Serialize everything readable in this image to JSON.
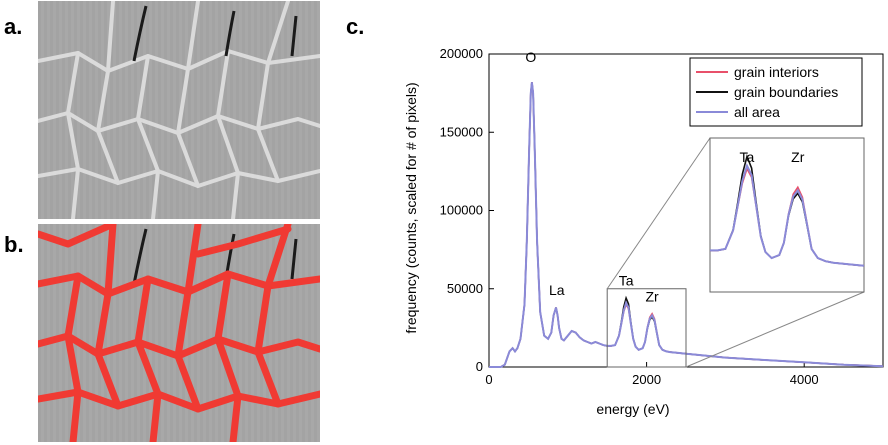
{
  "panel_labels": {
    "a": "a.",
    "b": "b.",
    "c": "c."
  },
  "colors": {
    "grain_interiors": "#e8506a",
    "grain_boundaries": "#111111",
    "all_area": "#8a8ad8",
    "boundary_overlay": "#f03a33",
    "micro_bg": "#a9a9a9"
  },
  "micrographs": [
    {
      "panel": "a",
      "overlay": "none"
    },
    {
      "panel": "b",
      "overlay": "grain boundaries (red)"
    }
  ],
  "chart_data": {
    "type": "line",
    "xlabel": "energy (eV)",
    "ylabel": "frequency (counts, scaled for # of pixels)",
    "xlim": [
      0,
      5000
    ],
    "ylim": [
      0,
      200000
    ],
    "xticks": [
      0,
      2000,
      4000
    ],
    "yticks": [
      0,
      50000,
      100000,
      150000,
      200000
    ],
    "legend_position": "top-right",
    "series": [
      {
        "name": "grain interiors",
        "peaks": {
          "Ta": 40000,
          "Zr": 34000
        }
      },
      {
        "name": "grain boundaries",
        "peaks": {
          "Ta": 44000,
          "Zr": 32000
        }
      },
      {
        "name": "all area",
        "peaks": {
          "Ta": 41000,
          "Zr": 33000
        }
      }
    ],
    "x": [
      0,
      150,
      200,
      260,
      300,
      330,
      360,
      400,
      450,
      480,
      510,
      530,
      545,
      560,
      580,
      610,
      650,
      700,
      750,
      790,
      820,
      850,
      870,
      890,
      920,
      950,
      1000,
      1050,
      1100,
      1150,
      1200,
      1250,
      1300,
      1350,
      1400,
      1450,
      1500,
      1550,
      1600,
      1650,
      1680,
      1710,
      1740,
      1770,
      1800,
      1830,
      1860,
      1900,
      1950,
      1980,
      2010,
      2040,
      2070,
      2100,
      2130,
      2160,
      2200,
      2250,
      2300,
      2400,
      2500,
      2700,
      3000,
      3500,
      4000,
      4500,
      5000
    ],
    "base": [
      0,
      0,
      1500,
      10000,
      12000,
      10000,
      12000,
      18000,
      40000,
      80000,
      140000,
      175000,
      182000,
      175000,
      140000,
      80000,
      35000,
      20000,
      18000,
      22000,
      33000,
      38000,
      33000,
      25000,
      18000,
      17000,
      20000,
      23000,
      22000,
      19000,
      17000,
      16000,
      15000,
      16000,
      15000,
      14000,
      13500,
      13500,
      14000,
      20000,
      28000,
      36000,
      41000,
      38000,
      28000,
      18000,
      13000,
      11000,
      12000,
      16000,
      25000,
      31000,
      33000,
      30000,
      22000,
      14000,
      11000,
      10000,
      9500,
      9000,
      8500,
      7500,
      6000,
      4500,
      3000,
      1500,
      500
    ],
    "annotations": [
      {
        "text": "O",
        "x": 530,
        "y": 195000
      },
      {
        "text": "La",
        "x": 860,
        "y": 46000
      },
      {
        "text": "Ta",
        "x": 1740,
        "y": 52000
      },
      {
        "text": "Zr",
        "x": 2070,
        "y": 42000
      }
    ],
    "inset": {
      "xlim": [
        1500,
        2500
      ],
      "ylim": [
        0,
        50000
      ],
      "annotations": [
        {
          "text": "Ta",
          "x": 1740
        },
        {
          "text": "Zr",
          "x": 2070
        }
      ]
    }
  }
}
